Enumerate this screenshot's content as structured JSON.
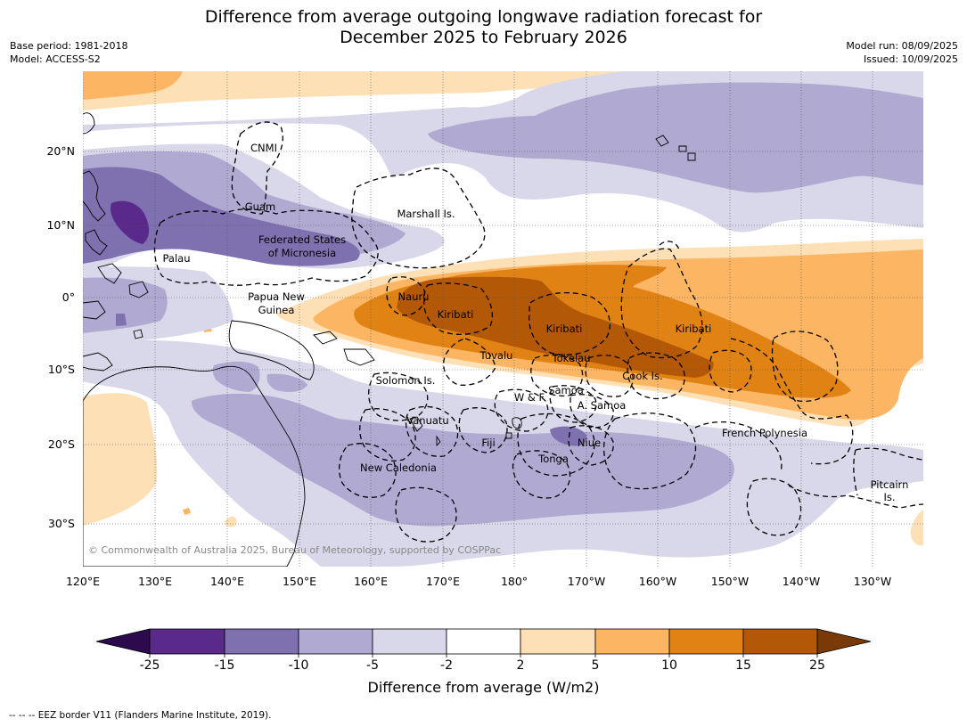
{
  "title": {
    "line1": "Difference from average outgoing longwave radiation forecast for",
    "line2": "December 2025 to February 2026"
  },
  "meta_left": {
    "base_period": "Base period: 1981-2018",
    "model": "Model: ACCESS-S2"
  },
  "meta_right": {
    "model_run": "Model run: 08/09/2025",
    "issued": "Issued: 10/09/2025"
  },
  "map": {
    "lon_labels": [
      "120°E",
      "130°E",
      "140°E",
      "150°E",
      "160°E",
      "170°E",
      "180°",
      "170°W",
      "160°W",
      "150°W",
      "140°W",
      "130°W"
    ],
    "lat_labels": [
      "20°N",
      "10°N",
      "0°",
      "10°S",
      "20°S",
      "30°S"
    ],
    "copyright": "© Commonwealth of Australia 2025, Bureau of Meteorology, supported by COSPPac",
    "regions": [
      {
        "name": "CNMI"
      },
      {
        "name": "Guam"
      },
      {
        "name": "Marshall Is."
      },
      {
        "name": "Federated States"
      },
      {
        "name": "of Micronesia"
      },
      {
        "name": "Palau"
      },
      {
        "name": "Papua New"
      },
      {
        "name": "Guinea"
      },
      {
        "name": "Nauru"
      },
      {
        "name": "Kiribati"
      },
      {
        "name": "Kiribati"
      },
      {
        "name": "Kiribati"
      },
      {
        "name": "Tuvalu"
      },
      {
        "name": "Tokelau"
      },
      {
        "name": "Cook Is."
      },
      {
        "name": "Solomon Is."
      },
      {
        "name": "Samoa"
      },
      {
        "name": "W & F"
      },
      {
        "name": "A. Samoa"
      },
      {
        "name": "Vanuatu"
      },
      {
        "name": "Fiji"
      },
      {
        "name": "Niue"
      },
      {
        "name": "Tonga"
      },
      {
        "name": "French Polynesia"
      },
      {
        "name": "New Caledonia"
      },
      {
        "name": "Pitcairn"
      },
      {
        "name": "Is."
      }
    ]
  },
  "colorbar": {
    "title": "Difference from average (W/m2)",
    "ticks": [
      "-25",
      "-15",
      "-10",
      "-5",
      "-2",
      "2",
      "5",
      "10",
      "15",
      "25"
    ],
    "colors": {
      "lt_m25": "#2d0a4e",
      "m25_m15": "#5a2a8a",
      "m15_m10": "#7f70b0",
      "m10_m5": "#b0a9d2",
      "m5_m2": "#d9d8ea",
      "m2_2": "#ffffff",
      "p2_p5": "#fde0b5",
      "p5_p10": "#fbb563",
      "p10_p15": "#e08214",
      "p15_p25": "#b35806",
      "gt_p25": "#7a3a08"
    }
  },
  "footer": "--  --  -- EEZ border V11 (Flanders Marine Institute, 2019)."
}
